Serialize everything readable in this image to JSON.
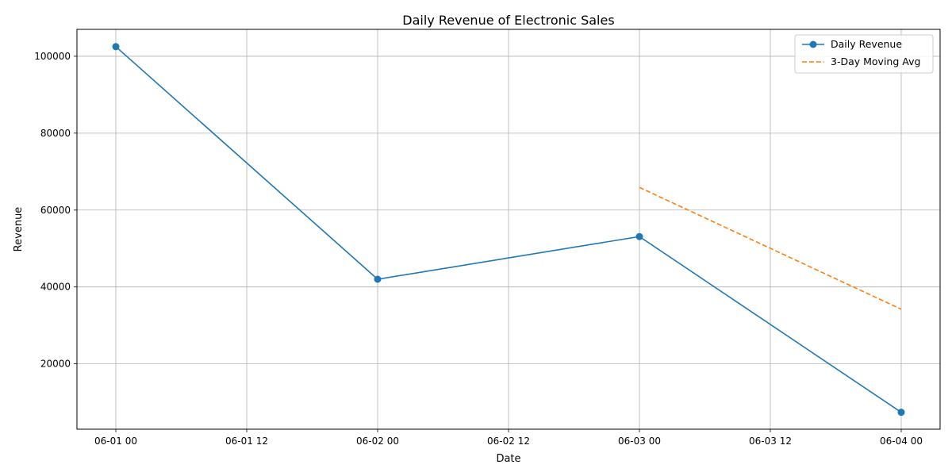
{
  "chart_data": {
    "type": "line",
    "title": "Daily Revenue of Electronic Sales",
    "xlabel": "Date",
    "ylabel": "Revenue",
    "x_ticks": [
      "06-01 00",
      "06-01 12",
      "06-02 00",
      "06-02 12",
      "06-03 00",
      "06-03 12",
      "06-04 00"
    ],
    "y_ticks": [
      20000,
      40000,
      60000,
      80000,
      100000
    ],
    "ylim": [
      3000,
      107000
    ],
    "grid": true,
    "legend_position": "top-right",
    "series": [
      {
        "name": "Daily Revenue",
        "style": "solid-with-markers",
        "color": "#1f77b4",
        "x": [
          "2023-06-01 00:00",
          "2023-06-02 00:00",
          "2023-06-03 00:00",
          "2023-06-04 00:00"
        ],
        "values": [
          102500,
          42000,
          53100,
          7400
        ]
      },
      {
        "name": "3-Day Moving Avg",
        "style": "dashed",
        "color": "#ff7f0e",
        "x": [
          "2023-06-03 00:00",
          "2023-06-04 00:00"
        ],
        "values": [
          65900,
          34200
        ]
      }
    ]
  }
}
